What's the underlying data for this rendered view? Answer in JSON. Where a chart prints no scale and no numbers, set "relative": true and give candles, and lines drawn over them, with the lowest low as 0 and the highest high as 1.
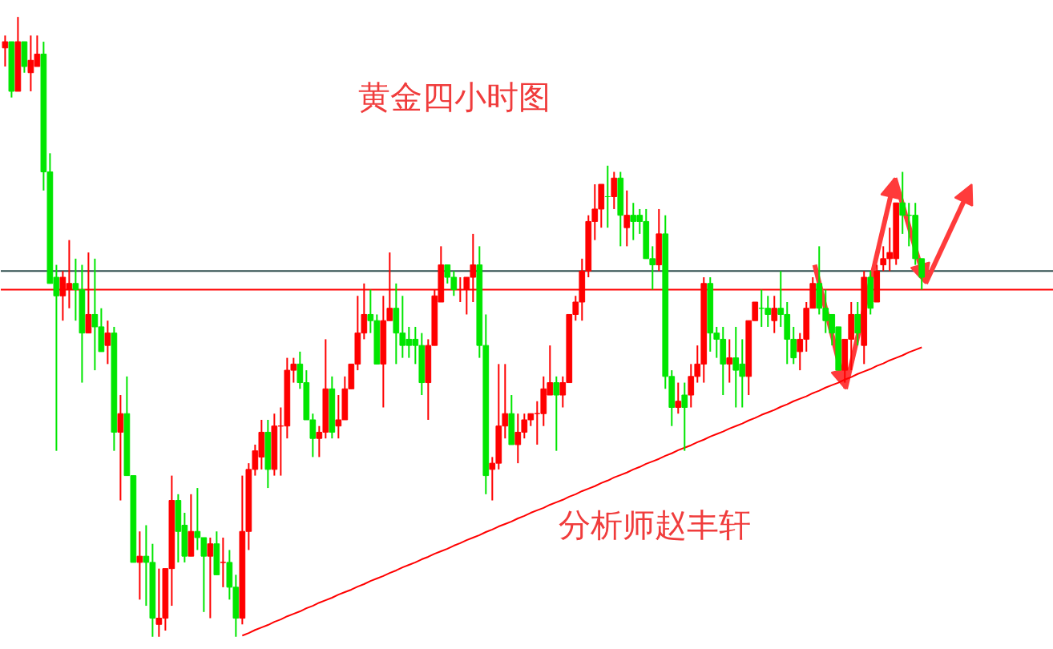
{
  "chart_data": {
    "type": "candlestick",
    "title": "黄金四小时图",
    "annotations": [
      "分析师赵丰轩"
    ],
    "relative": true,
    "tick_labels": false,
    "grid": false,
    "categories": [
      null,
      null,
      null,
      null,
      null,
      null,
      null,
      null,
      null,
      null,
      null,
      null,
      null,
      null,
      null,
      null,
      null,
      null,
      null,
      null,
      null,
      null,
      null,
      null,
      null,
      null,
      null,
      null,
      null,
      null,
      null,
      null,
      null,
      null,
      null,
      null,
      null,
      null,
      null,
      null,
      null,
      null,
      null,
      null,
      null,
      null,
      null,
      null,
      null,
      null,
      null,
      null,
      null,
      null,
      null,
      null,
      null,
      null,
      null,
      null,
      null,
      null,
      null,
      null,
      null,
      null,
      null,
      null,
      null,
      null,
      null,
      null,
      null,
      null,
      null,
      null,
      null,
      null,
      null,
      null,
      null,
      null,
      null,
      null,
      null,
      null,
      null,
      null,
      null,
      null,
      null,
      null,
      null,
      null,
      null,
      null,
      null,
      null,
      null,
      null,
      null,
      null,
      null,
      null,
      null,
      null,
      null,
      null,
      null,
      null,
      null,
      null,
      null,
      null,
      null,
      null,
      null,
      null,
      null,
      null,
      null,
      null,
      null,
      null,
      null,
      null,
      null,
      null,
      null,
      null,
      null,
      null,
      null,
      null,
      null,
      null,
      null,
      null,
      null,
      null,
      null,
      null,
      null,
      null
    ],
    "ohlc": [
      [
        0.95,
        0.97,
        0.92,
        0.96
      ],
      [
        0.96,
        0.96,
        0.87,
        0.88
      ],
      [
        0.88,
        1.0,
        0.88,
        0.96
      ],
      [
        0.96,
        0.96,
        0.91,
        0.92
      ],
      [
        0.91,
        0.97,
        0.88,
        0.93
      ],
      [
        0.92,
        0.97,
        0.92,
        0.94
      ],
      [
        0.94,
        0.96,
        0.72,
        0.75
      ],
      [
        0.75,
        0.78,
        0.57,
        0.57
      ],
      [
        0.58,
        0.6,
        0.3,
        0.55
      ],
      [
        0.55,
        0.59,
        0.51,
        0.58
      ],
      [
        0.56,
        0.64,
        0.53,
        0.57
      ],
      [
        0.57,
        0.61,
        0.51,
        0.56
      ],
      [
        0.56,
        0.6,
        0.41,
        0.49
      ],
      [
        0.49,
        0.62,
        0.49,
        0.52
      ],
      [
        0.52,
        0.61,
        0.43,
        0.5
      ],
      [
        0.5,
        0.53,
        0.46,
        0.46
      ],
      [
        0.47,
        0.51,
        0.44,
        0.49
      ],
      [
        0.49,
        0.5,
        0.3,
        0.33
      ],
      [
        0.33,
        0.39,
        0.22,
        0.36
      ],
      [
        0.36,
        0.42,
        0.26,
        0.26
      ],
      [
        0.26,
        0.26,
        0.12,
        0.12
      ],
      [
        0.12,
        0.17,
        0.06,
        0.13
      ],
      [
        0.13,
        0.18,
        0.05,
        0.12
      ],
      [
        0.12,
        0.15,
        0.0,
        0.03
      ],
      [
        0.02,
        0.11,
        0.0,
        0.03
      ],
      [
        0.03,
        0.11,
        0.01,
        0.11
      ],
      [
        0.11,
        0.26,
        0.05,
        0.22
      ],
      [
        0.22,
        0.23,
        0.12,
        0.17
      ],
      [
        0.18,
        0.2,
        0.12,
        0.13
      ],
      [
        0.13,
        0.23,
        0.13,
        0.17
      ],
      [
        0.17,
        0.24,
        0.14,
        0.16
      ],
      [
        0.16,
        0.16,
        0.04,
        0.13
      ],
      [
        0.13,
        0.16,
        0.03,
        0.15
      ],
      [
        0.15,
        0.17,
        0.1,
        0.1
      ],
      [
        0.12,
        0.16,
        0.08,
        0.12
      ],
      [
        0.12,
        0.14,
        0.06,
        0.08
      ],
      [
        0.08,
        0.1,
        0.0,
        0.03
      ],
      [
        0.03,
        0.26,
        0.02,
        0.17
      ],
      [
        0.17,
        0.28,
        0.14,
        0.27
      ],
      [
        0.27,
        0.31,
        0.26,
        0.3
      ],
      [
        0.29,
        0.35,
        0.27,
        0.33
      ],
      [
        0.33,
        0.35,
        0.24,
        0.27
      ],
      [
        0.27,
        0.36,
        0.26,
        0.34
      ],
      [
        0.34,
        0.37,
        0.26,
        0.34
      ],
      [
        0.34,
        0.45,
        0.32,
        0.43
      ],
      [
        0.43,
        0.45,
        0.41,
        0.44
      ],
      [
        0.44,
        0.46,
        0.4,
        0.41
      ],
      [
        0.41,
        0.43,
        0.35,
        0.35
      ],
      [
        0.35,
        0.36,
        0.29,
        0.32
      ],
      [
        0.32,
        0.34,
        0.29,
        0.33
      ],
      [
        0.33,
        0.48,
        0.32,
        0.4
      ],
      [
        0.4,
        0.42,
        0.32,
        0.33
      ],
      [
        0.34,
        0.39,
        0.32,
        0.35
      ],
      [
        0.35,
        0.42,
        0.35,
        0.4
      ],
      [
        0.4,
        0.44,
        0.4,
        0.44
      ],
      [
        0.44,
        0.55,
        0.43,
        0.49
      ],
      [
        0.49,
        0.57,
        0.48,
        0.52
      ],
      [
        0.52,
        0.56,
        0.49,
        0.51
      ],
      [
        0.51,
        0.52,
        0.44,
        0.44
      ],
      [
        0.44,
        0.55,
        0.37,
        0.51
      ],
      [
        0.51,
        0.62,
        0.51,
        0.53
      ],
      [
        0.53,
        0.57,
        0.44,
        0.49
      ],
      [
        0.49,
        0.55,
        0.45,
        0.47
      ],
      [
        0.48,
        0.5,
        0.45,
        0.47
      ],
      [
        0.48,
        0.5,
        0.44,
        0.47
      ],
      [
        0.47,
        0.49,
        0.39,
        0.41
      ],
      [
        0.41,
        0.48,
        0.35,
        0.47
      ],
      [
        0.47,
        0.56,
        0.47,
        0.55
      ],
      [
        0.54,
        0.63,
        0.54,
        0.6
      ],
      [
        0.6,
        0.6,
        0.57,
        0.58
      ],
      [
        0.58,
        0.59,
        0.55,
        0.56
      ],
      [
        0.56,
        0.58,
        0.54,
        0.56
      ],
      [
        0.56,
        0.58,
        0.52,
        0.58
      ],
      [
        0.58,
        0.65,
        0.54,
        0.6
      ],
      [
        0.6,
        0.63,
        0.45,
        0.47
      ],
      [
        0.47,
        0.52,
        0.23,
        0.26
      ],
      [
        0.27,
        0.29,
        0.22,
        0.28
      ],
      [
        0.28,
        0.44,
        0.27,
        0.34
      ],
      [
        0.34,
        0.44,
        0.32,
        0.36
      ],
      [
        0.36,
        0.39,
        0.31,
        0.31
      ],
      [
        0.31,
        0.36,
        0.28,
        0.33
      ],
      [
        0.33,
        0.36,
        0.32,
        0.35
      ],
      [
        0.35,
        0.36,
        0.34,
        0.36
      ],
      [
        0.36,
        0.38,
        0.31,
        0.36
      ],
      [
        0.36,
        0.42,
        0.34,
        0.4
      ],
      [
        0.39,
        0.47,
        0.39,
        0.41
      ],
      [
        0.41,
        0.42,
        0.3,
        0.39
      ],
      [
        0.39,
        0.42,
        0.37,
        0.41
      ],
      [
        0.41,
        0.52,
        0.41,
        0.52
      ],
      [
        0.52,
        0.55,
        0.51,
        0.54
      ],
      [
        0.54,
        0.61,
        0.51,
        0.59
      ],
      [
        0.59,
        0.68,
        0.58,
        0.67
      ],
      [
        0.67,
        0.73,
        0.64,
        0.69
      ],
      [
        0.69,
        0.73,
        0.66,
        0.73
      ],
      [
        0.71,
        0.76,
        0.66,
        0.71
      ],
      [
        0.71,
        0.75,
        0.69,
        0.74
      ],
      [
        0.74,
        0.75,
        0.63,
        0.68
      ],
      [
        0.66,
        0.72,
        0.63,
        0.68
      ],
      [
        0.68,
        0.7,
        0.64,
        0.67
      ],
      [
        0.68,
        0.69,
        0.65,
        0.67
      ],
      [
        0.67,
        0.69,
        0.61,
        0.61
      ],
      [
        0.61,
        0.63,
        0.56,
        0.6
      ],
      [
        0.6,
        0.69,
        0.59,
        0.65
      ],
      [
        0.65,
        0.68,
        0.4,
        0.42
      ],
      [
        0.42,
        0.43,
        0.34,
        0.37
      ],
      [
        0.37,
        0.41,
        0.36,
        0.38
      ],
      [
        0.39,
        0.41,
        0.3,
        0.37
      ],
      [
        0.39,
        0.44,
        0.37,
        0.42
      ],
      [
        0.42,
        0.47,
        0.41,
        0.44
      ],
      [
        0.44,
        0.58,
        0.41,
        0.57
      ],
      [
        0.57,
        0.58,
        0.46,
        0.49
      ],
      [
        0.49,
        0.5,
        0.45,
        0.48
      ],
      [
        0.48,
        0.5,
        0.39,
        0.44
      ],
      [
        0.44,
        0.48,
        0.41,
        0.45
      ],
      [
        0.45,
        0.5,
        0.37,
        0.43
      ],
      [
        0.44,
        0.48,
        0.37,
        0.42
      ],
      [
        0.42,
        0.51,
        0.39,
        0.51
      ],
      [
        0.51,
        0.54,
        0.51,
        0.54
      ],
      [
        0.53,
        0.56,
        0.5,
        0.53
      ],
      [
        0.53,
        0.55,
        0.5,
        0.52
      ],
      [
        0.51,
        0.55,
        0.49,
        0.53
      ],
      [
        0.53,
        0.59,
        0.5,
        0.52
      ],
      [
        0.52,
        0.54,
        0.44,
        0.48
      ],
      [
        0.48,
        0.5,
        0.44,
        0.45
      ],
      [
        0.46,
        0.49,
        0.43,
        0.48
      ],
      [
        0.48,
        0.54,
        0.46,
        0.53
      ],
      [
        0.53,
        0.58,
        0.53,
        0.57
      ],
      [
        0.57,
        0.63,
        0.52,
        0.53
      ],
      [
        0.53,
        0.56,
        0.49,
        0.51
      ],
      [
        0.52,
        0.52,
        0.47,
        0.49
      ],
      [
        0.5,
        0.5,
        0.43,
        0.43
      ],
      [
        0.43,
        0.48,
        0.41,
        0.48
      ],
      [
        0.48,
        0.54,
        0.43,
        0.52
      ],
      [
        0.52,
        0.54,
        0.47,
        0.49
      ],
      [
        0.47,
        0.59,
        0.44,
        0.58
      ],
      [
        0.58,
        0.59,
        0.52,
        0.53
      ],
      [
        0.54,
        0.6,
        0.54,
        0.59
      ],
      [
        0.6,
        0.63,
        0.59,
        0.61
      ],
      [
        0.61,
        0.66,
        0.59,
        0.62
      ],
      [
        0.61,
        0.7,
        0.6,
        0.7
      ],
      [
        0.7,
        0.75,
        0.65,
        0.68
      ],
      [
        0.68,
        0.7,
        0.63,
        0.68
      ],
      [
        0.68,
        0.7,
        0.6,
        0.61
      ],
      [
        0.61,
        0.61,
        0.56,
        0.58
      ]
    ],
    "colors": [
      "#ff0000",
      "#00e600",
      "#ff0000",
      "#00e600",
      "#ff0000",
      "#ff0000",
      "#00e600",
      "#00e600",
      "#00e600",
      "#ff0000",
      "#ff0000",
      "#00e600",
      "#00e600",
      "#ff0000",
      "#00e600",
      "#00e600",
      "#ff0000",
      "#00e600",
      "#ff0000",
      "#00e600",
      "#00e600",
      "#ff0000",
      "#00e600",
      "#00e600",
      "#ff0000",
      "#ff0000",
      "#ff0000",
      "#00e600",
      "#00e600",
      "#ff0000",
      "#00e600",
      "#00e600",
      "#ff0000",
      "#00e600",
      "#ff0000",
      "#00e600",
      "#00e600",
      "#ff0000",
      "#ff0000",
      "#ff0000",
      "#ff0000",
      "#00e600",
      "#ff0000",
      "#ff0000",
      "#ff0000",
      "#ff0000",
      "#00e600",
      "#00e600",
      "#00e600",
      "#ff0000",
      "#ff0000",
      "#00e600",
      "#ff0000",
      "#ff0000",
      "#ff0000",
      "#ff0000",
      "#ff0000",
      "#00e600",
      "#00e600",
      "#ff0000",
      "#ff0000",
      "#00e600",
      "#00e600",
      "#00e600",
      "#00e600",
      "#00e600",
      "#ff0000",
      "#ff0000",
      "#ff0000",
      "#00e600",
      "#00e600",
      "#ff0000",
      "#ff0000",
      "#ff0000",
      "#00e600",
      "#00e600",
      "#ff0000",
      "#ff0000",
      "#ff0000",
      "#00e600",
      "#ff0000",
      "#ff0000",
      "#ff0000",
      "#ff0000",
      "#ff0000",
      "#ff0000",
      "#00e600",
      "#ff0000",
      "#ff0000",
      "#ff0000",
      "#ff0000",
      "#ff0000",
      "#ff0000",
      "#ff0000",
      "#00e600",
      "#ff0000",
      "#00e600",
      "#ff0000",
      "#00e600",
      "#00e600",
      "#00e600",
      "#00e600",
      "#ff0000",
      "#00e600",
      "#00e600",
      "#ff0000",
      "#00e600",
      "#ff0000",
      "#ff0000",
      "#ff0000",
      "#00e600",
      "#00e600",
      "#00e600",
      "#ff0000",
      "#00e600",
      "#00e600",
      "#ff0000",
      "#ff0000",
      "#00e600",
      "#00e600",
      "#ff0000",
      "#00e600",
      "#00e600",
      "#00e600",
      "#ff0000",
      "#ff0000",
      "#ff0000",
      "#00e600",
      "#00e600",
      "#00e600",
      "#00e600",
      "#ff0000",
      "#ff0000",
      "#00e600",
      "#ff0000",
      "#00e600",
      "#ff0000",
      "#ff0000",
      "#ff0000",
      "#ff0000",
      "#00e600",
      "#00e600",
      "#00e600",
      "#00e600"
    ],
    "series": [
      {
        "type": "line",
        "color": "#ff0000",
        "values": [
          null,
          null,
          null,
          null,
          null,
          null,
          null,
          null,
          null,
          null,
          null,
          null,
          null,
          null,
          null,
          null,
          null,
          null,
          null,
          null,
          null,
          null,
          null,
          null,
          null,
          null,
          null,
          null,
          null,
          null,
          null,
          null,
          null,
          null,
          null,
          null,
          null,
          0.002,
          0.006,
          0.011,
          0.015,
          0.019,
          0.024,
          0.028,
          0.033,
          0.037,
          0.041,
          0.046,
          0.05,
          0.055,
          0.059,
          0.063,
          0.068,
          0.072,
          0.076,
          0.081,
          0.085,
          0.09,
          0.094,
          0.098,
          0.103,
          0.107,
          0.112,
          0.116,
          0.12,
          0.125,
          0.129,
          0.134,
          0.138,
          0.142,
          0.147,
          0.151,
          0.156,
          0.16,
          0.164,
          0.169,
          0.173,
          0.178,
          0.182,
          0.186,
          0.191,
          0.195,
          0.2,
          0.204,
          0.208,
          0.213,
          0.217,
          0.221,
          0.226,
          0.23,
          0.235,
          0.239,
          0.243,
          0.248,
          0.252,
          0.257,
          0.261,
          0.265,
          0.27,
          0.274,
          0.279,
          0.283,
          0.287,
          0.292,
          0.296,
          0.301,
          0.305,
          0.309,
          0.314,
          0.318,
          0.323,
          0.327,
          0.331,
          0.336,
          0.34,
          0.344,
          0.349,
          0.353,
          0.358,
          0.362,
          0.366,
          0.371,
          0.375,
          0.38,
          0.384,
          0.388,
          0.393,
          0.397,
          0.402,
          0.406,
          0.41,
          0.415,
          0.419,
          0.424,
          0.428,
          0.432,
          0.437,
          0.441,
          0.446,
          0.45,
          0.454,
          0.459,
          0.463,
          0.467
        ]
      }
    ],
    "ref_lines": [
      {
        "axis": "y",
        "value": 0.59,
        "color": "#2f4f4f"
      },
      {
        "axis": "y",
        "value": 0.56,
        "color": "#ff0000"
      }
    ]
  }
}
